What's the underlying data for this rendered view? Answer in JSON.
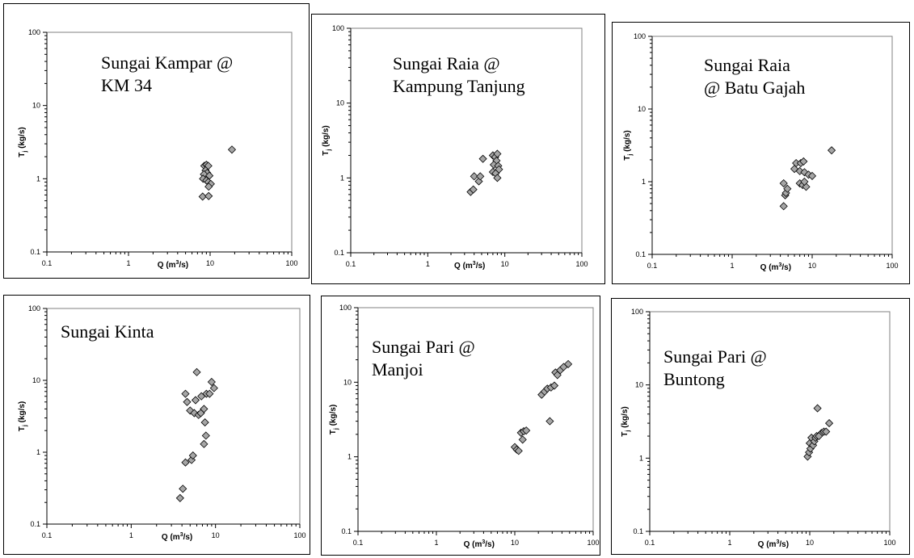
{
  "chart_data": [
    {
      "type": "scatter",
      "title_lines": [
        "Sungai Kampar @",
        "KM 34"
      ],
      "xlabel": "Q (m",
      "xlabel_sup": "3",
      "xlabel_end": "/s)",
      "ylabel": "T",
      "ylabel_sub": "j",
      "ylabel_end": " (kg/s)",
      "xscale": "log",
      "yscale": "log",
      "xlim": [
        0.1,
        100
      ],
      "ylim": [
        0.1,
        100
      ],
      "xticks": [
        "0.1",
        "1",
        "10",
        "100"
      ],
      "yticks": [
        "0.1",
        "1",
        "10",
        "100"
      ],
      "grid": false,
      "marker": "diamond",
      "points": [
        {
          "x": 8.5,
          "y": 1.5
        },
        {
          "x": 9.0,
          "y": 1.55
        },
        {
          "x": 9.5,
          "y": 1.5
        },
        {
          "x": 8.8,
          "y": 1.3
        },
        {
          "x": 9.2,
          "y": 1.2
        },
        {
          "x": 8.4,
          "y": 1.15
        },
        {
          "x": 9.8,
          "y": 1.1
        },
        {
          "x": 8.2,
          "y": 1.0
        },
        {
          "x": 9.0,
          "y": 0.95
        },
        {
          "x": 9.5,
          "y": 0.9
        },
        {
          "x": 10.2,
          "y": 0.85
        },
        {
          "x": 9.6,
          "y": 0.78
        },
        {
          "x": 8.1,
          "y": 0.57
        },
        {
          "x": 9.6,
          "y": 0.58
        },
        {
          "x": 18.5,
          "y": 2.5
        }
      ]
    },
    {
      "type": "scatter",
      "title_lines": [
        "Sungai Raia @",
        "Kampung Tanjung"
      ],
      "xlabel": "Q (m",
      "xlabel_sup": "3",
      "xlabel_end": "/s)",
      "ylabel": "T",
      "ylabel_sub": "j",
      "ylabel_end": " (kg/s)",
      "xscale": "log",
      "yscale": "log",
      "xlim": [
        0.1,
        100
      ],
      "ylim": [
        0.1,
        100
      ],
      "xticks": [
        "0.1",
        "1",
        "10",
        "100"
      ],
      "yticks": [
        "0.1",
        "1",
        "10",
        "100"
      ],
      "grid": false,
      "marker": "diamond",
      "points": [
        {
          "x": 3.6,
          "y": 0.65
        },
        {
          "x": 3.9,
          "y": 0.7
        },
        {
          "x": 4.0,
          "y": 1.05
        },
        {
          "x": 4.6,
          "y": 0.9
        },
        {
          "x": 4.8,
          "y": 1.05
        },
        {
          "x": 5.2,
          "y": 1.8
        },
        {
          "x": 7.0,
          "y": 2.0
        },
        {
          "x": 7.5,
          "y": 1.9
        },
        {
          "x": 8.0,
          "y": 2.1
        },
        {
          "x": 7.8,
          "y": 1.7
        },
        {
          "x": 7.2,
          "y": 1.5
        },
        {
          "x": 8.2,
          "y": 1.45
        },
        {
          "x": 7.0,
          "y": 1.2
        },
        {
          "x": 7.6,
          "y": 1.15
        },
        {
          "x": 8.4,
          "y": 1.3
        },
        {
          "x": 8.0,
          "y": 1.0
        }
      ]
    },
    {
      "type": "scatter",
      "title_lines": [
        "Sungai Raia",
        "@ Batu Gajah"
      ],
      "xlabel": "Q (m",
      "xlabel_sup": "3",
      "xlabel_end": "/s)",
      "ylabel": "T",
      "ylabel_sub": "j",
      "ylabel_end": " (kg/s)",
      "xscale": "log",
      "yscale": "log",
      "xlim": [
        0.1,
        100
      ],
      "ylim": [
        0.1,
        100
      ],
      "xticks": [
        "0.1",
        "1",
        "10",
        "100"
      ],
      "yticks": [
        "0.1",
        "1",
        "10",
        "100"
      ],
      "grid": false,
      "marker": "diamond",
      "points": [
        {
          "x": 4.4,
          "y": 0.46
        },
        {
          "x": 4.6,
          "y": 0.65
        },
        {
          "x": 4.7,
          "y": 0.7
        },
        {
          "x": 4.4,
          "y": 0.95
        },
        {
          "x": 4.9,
          "y": 0.8
        },
        {
          "x": 6.0,
          "y": 1.5
        },
        {
          "x": 6.3,
          "y": 1.8
        },
        {
          "x": 7.2,
          "y": 1.8
        },
        {
          "x": 7.8,
          "y": 1.9
        },
        {
          "x": 7.0,
          "y": 1.4
        },
        {
          "x": 8.0,
          "y": 1.35
        },
        {
          "x": 9.0,
          "y": 1.25
        },
        {
          "x": 10.0,
          "y": 1.2
        },
        {
          "x": 7.0,
          "y": 0.95
        },
        {
          "x": 7.6,
          "y": 0.9
        },
        {
          "x": 8.4,
          "y": 0.85
        },
        {
          "x": 8.0,
          "y": 1.0
        },
        {
          "x": 17.5,
          "y": 2.7
        }
      ]
    },
    {
      "type": "scatter",
      "title_lines": [
        "Sungai Kinta"
      ],
      "xlabel": "Q (m",
      "xlabel_sup": "3",
      "xlabel_end": "/s)",
      "ylabel": "T",
      "ylabel_sub": "j",
      "ylabel_end": " (kg/s)",
      "xscale": "log",
      "yscale": "log",
      "xlim": [
        0.1,
        100
      ],
      "ylim": [
        0.1,
        100
      ],
      "xticks": [
        "0.1",
        "1",
        "10",
        "100"
      ],
      "yticks": [
        "0.1",
        "1",
        "10",
        "100"
      ],
      "grid": false,
      "marker": "diamond",
      "points": [
        {
          "x": 3.8,
          "y": 0.23
        },
        {
          "x": 4.1,
          "y": 0.31
        },
        {
          "x": 4.4,
          "y": 0.72
        },
        {
          "x": 5.2,
          "y": 0.78
        },
        {
          "x": 5.4,
          "y": 0.9
        },
        {
          "x": 4.4,
          "y": 6.5
        },
        {
          "x": 4.6,
          "y": 5.0
        },
        {
          "x": 5.0,
          "y": 3.8
        },
        {
          "x": 5.6,
          "y": 3.5
        },
        {
          "x": 6.3,
          "y": 3.3
        },
        {
          "x": 6.7,
          "y": 3.5
        },
        {
          "x": 5.8,
          "y": 5.3
        },
        {
          "x": 6.0,
          "y": 13.0
        },
        {
          "x": 6.8,
          "y": 6.0
        },
        {
          "x": 7.3,
          "y": 4.0
        },
        {
          "x": 7.5,
          "y": 2.6
        },
        {
          "x": 7.7,
          "y": 1.7
        },
        {
          "x": 7.3,
          "y": 1.3
        },
        {
          "x": 7.8,
          "y": 6.5
        },
        {
          "x": 8.5,
          "y": 6.5
        },
        {
          "x": 9.0,
          "y": 9.5
        },
        {
          "x": 9.6,
          "y": 7.8
        }
      ]
    },
    {
      "type": "scatter",
      "title_lines": [
        "Sungai Pari @",
        "Manjoi"
      ],
      "xlabel": "Q (m",
      "xlabel_sup": "3",
      "xlabel_end": "/s)",
      "ylabel": "T",
      "ylabel_sub": "j",
      "ylabel_end": " (kg/s)",
      "xscale": "log",
      "yscale": "log",
      "xlim": [
        0.1,
        100
      ],
      "ylim": [
        0.1,
        100
      ],
      "xticks": [
        "0.1",
        "1",
        "10",
        "100"
      ],
      "yticks": [
        "0.1",
        "1",
        "10",
        "100"
      ],
      "grid": false,
      "marker": "diamond",
      "points": [
        {
          "x": 10.0,
          "y": 1.35
        },
        {
          "x": 10.6,
          "y": 1.25
        },
        {
          "x": 11.2,
          "y": 1.2
        },
        {
          "x": 12.0,
          "y": 2.1
        },
        {
          "x": 12.6,
          "y": 1.7
        },
        {
          "x": 13.0,
          "y": 2.2
        },
        {
          "x": 14.0,
          "y": 2.25
        },
        {
          "x": 22.0,
          "y": 6.8
        },
        {
          "x": 24.0,
          "y": 7.5
        },
        {
          "x": 26.0,
          "y": 8.2
        },
        {
          "x": 28.0,
          "y": 3.0
        },
        {
          "x": 29.0,
          "y": 8.5
        },
        {
          "x": 32.0,
          "y": 9.0
        },
        {
          "x": 33.0,
          "y": 13.5
        },
        {
          "x": 35.0,
          "y": 12.5
        },
        {
          "x": 38.0,
          "y": 14.5
        },
        {
          "x": 42.0,
          "y": 16.0
        },
        {
          "x": 48.0,
          "y": 17.5
        }
      ]
    },
    {
      "type": "scatter",
      "title_lines": [
        "Sungai Pari @",
        "Buntong"
      ],
      "xlabel": "Q (m",
      "xlabel_sup": "3",
      "xlabel_end": "/s)",
      "ylabel": "T",
      "ylabel_sub": "j",
      "ylabel_end": " (kg/s)",
      "xscale": "log",
      "yscale": "log",
      "xlim": [
        0.1,
        100
      ],
      "ylim": [
        0.1,
        100
      ],
      "xticks": [
        "0.1",
        "1",
        "10",
        "100"
      ],
      "yticks": [
        "0.1",
        "1",
        "10",
        "100"
      ],
      "grid": false,
      "marker": "diamond",
      "points": [
        {
          "x": 9.4,
          "y": 1.05
        },
        {
          "x": 9.8,
          "y": 1.2
        },
        {
          "x": 10.2,
          "y": 1.35
        },
        {
          "x": 10.0,
          "y": 1.6
        },
        {
          "x": 10.5,
          "y": 1.9
        },
        {
          "x": 11.0,
          "y": 1.5
        },
        {
          "x": 11.4,
          "y": 1.7
        },
        {
          "x": 11.8,
          "y": 1.9
        },
        {
          "x": 12.2,
          "y": 2.0
        },
        {
          "x": 12.5,
          "y": 4.8
        },
        {
          "x": 14.0,
          "y": 2.2
        },
        {
          "x": 15.0,
          "y": 2.3
        },
        {
          "x": 16.0,
          "y": 2.3
        },
        {
          "x": 17.5,
          "y": 3.0
        },
        {
          "x": 13.0,
          "y": 2.0
        }
      ]
    }
  ]
}
